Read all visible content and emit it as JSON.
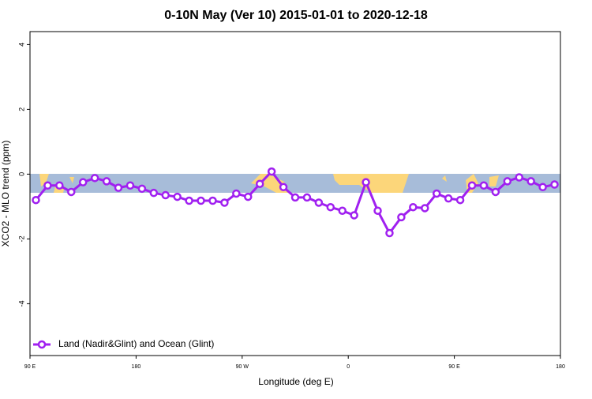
{
  "chart_data": {
    "type": "line",
    "title": "0-10N May (Ver 10)   2015-01-01 to 2020-12-18",
    "x_label": "Longitude (deg E)",
    "y_label": "XCO2 - MLO trend (ppm)",
    "x": [
      95,
      105,
      115,
      125,
      135,
      145,
      155,
      165,
      175,
      185,
      195,
      205,
      215,
      225,
      235,
      245,
      255,
      265,
      275,
      285,
      295,
      305,
      315,
      325,
      335,
      345,
      355,
      365,
      375,
      385,
      395,
      405,
      415,
      425,
      435,
      445,
      455,
      465,
      475,
      485,
      495,
      505,
      515,
      525,
      535
    ],
    "series": [
      {
        "name": "Land (Nadir&Glint) and Ocean (Glint)",
        "color": "#a020f0",
        "values": [
          -0.8,
          -0.35,
          -0.35,
          -0.55,
          -0.25,
          -0.12,
          -0.22,
          -0.42,
          -0.35,
          -0.45,
          -0.58,
          -0.65,
          -0.7,
          -0.82,
          -0.82,
          -0.82,
          -0.88,
          -0.6,
          -0.7,
          -0.3,
          0.08,
          -0.4,
          -0.72,
          -0.72,
          -0.88,
          -1.02,
          -1.13,
          -1.27,
          -0.25,
          -1.13,
          -1.82,
          -1.33,
          -1.02,
          -1.05,
          -0.6,
          -0.75,
          -0.8,
          -0.35,
          -0.35,
          -0.55,
          -0.22,
          -0.1,
          -0.22,
          -0.4,
          -0.32
        ]
      }
    ],
    "xlim": [
      90,
      540
    ],
    "xticks": [
      {
        "value": 90,
        "label": "90 E"
      },
      180,
      {
        "value": 270,
        "label": "90 W"
      },
      {
        "value": 360,
        "label": "0"
      },
      {
        "value": 450,
        "label": "90 E"
      },
      {
        "value": 540,
        "label": "180"
      }
    ],
    "ylim": [
      -5.6,
      4.4
    ],
    "yticks": [
      -4,
      -2,
      0,
      2,
      4
    ],
    "legend": "bottom-left"
  }
}
